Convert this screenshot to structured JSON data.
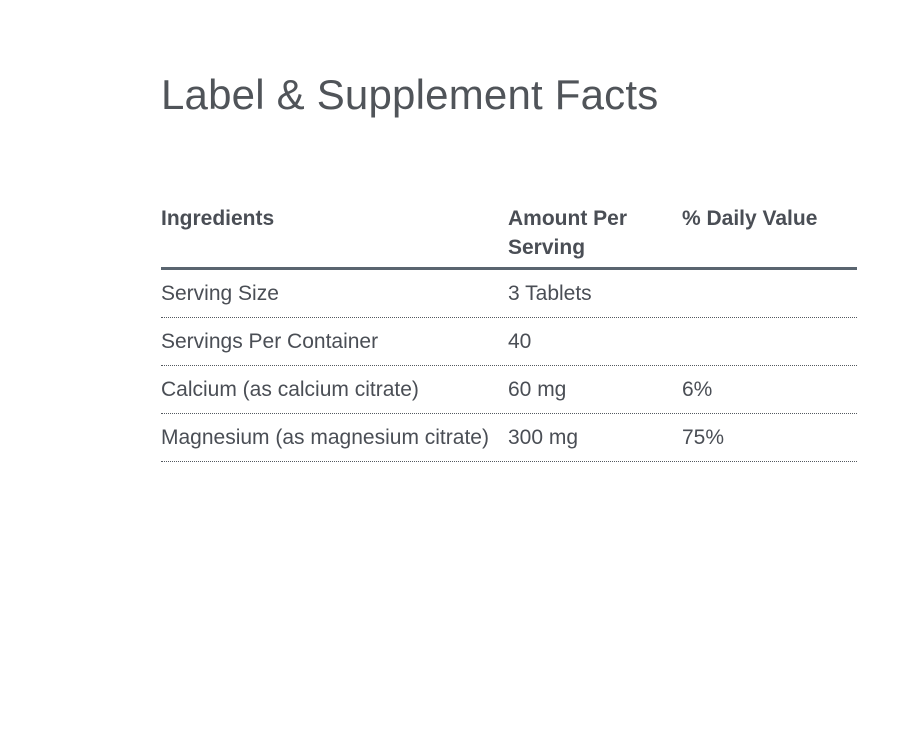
{
  "page": {
    "title": "Label & Supplement Facts"
  },
  "table": {
    "headers": {
      "ingredients": "Ingredients",
      "amount": "Amount Per Serving",
      "daily_value": "% Daily Value"
    },
    "rows": [
      {
        "ingredient": "Serving Size",
        "amount": "3 Tablets",
        "daily_value": ""
      },
      {
        "ingredient": "Servings Per Container",
        "amount": "40",
        "daily_value": ""
      },
      {
        "ingredient": "Calcium (as calcium citrate)",
        "amount": "60 mg",
        "daily_value": "6%"
      },
      {
        "ingredient": "Magnesium (as magnesium citrate)",
        "amount": "300 mg",
        "daily_value": "75%"
      }
    ]
  },
  "colors": {
    "text": "#4a4e55",
    "header_rule": "#5a6570",
    "row_rule": "#555a60"
  }
}
